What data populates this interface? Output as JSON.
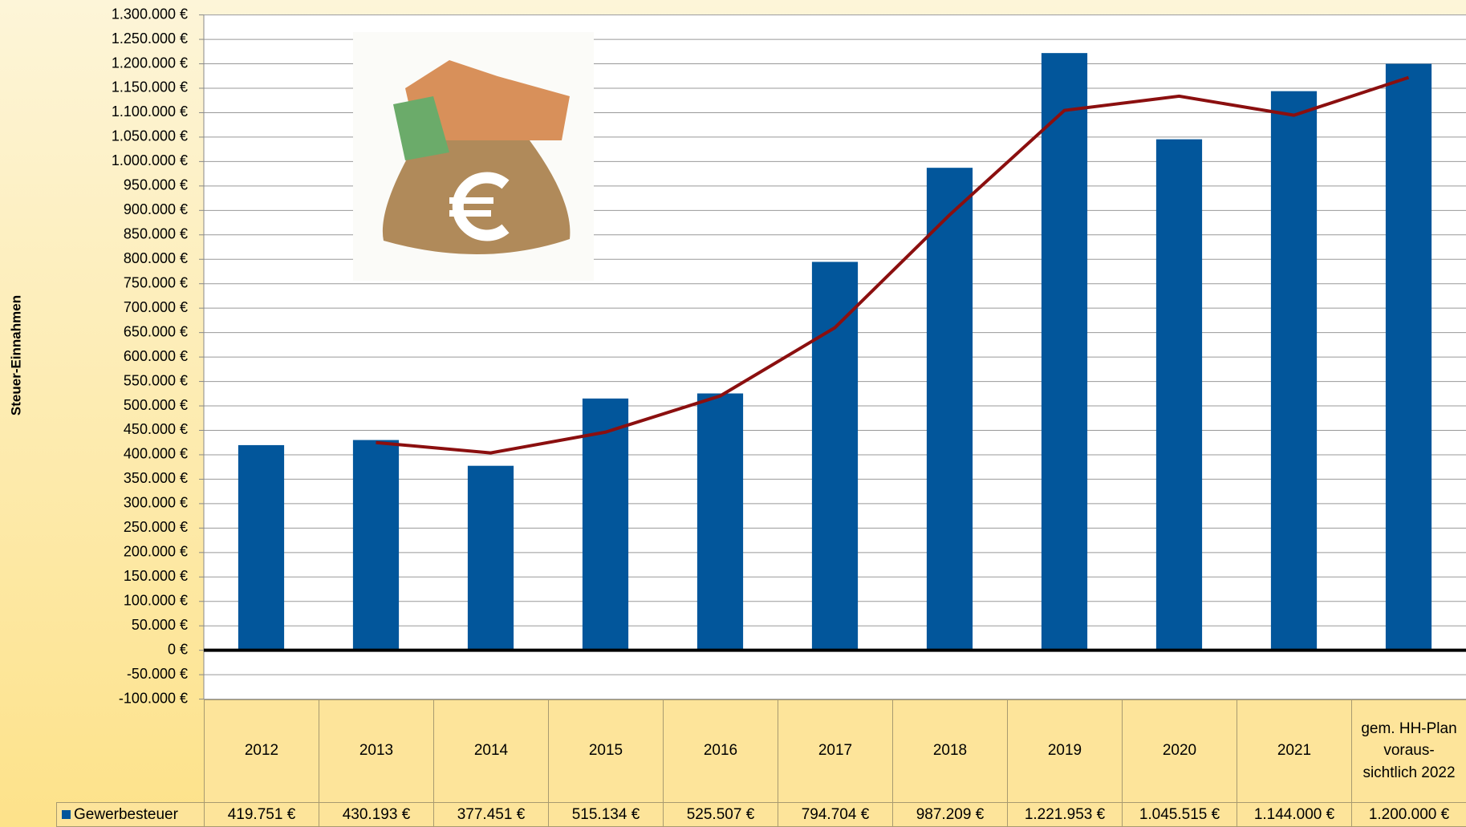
{
  "chart_data": {
    "type": "bar",
    "y_axis_label": "Steuer-Einnahmen",
    "categories": [
      "2012",
      "2013",
      "2014",
      "2015",
      "2016",
      "2017",
      "2018",
      "2019",
      "2020",
      "2021",
      "gem. HH-Plan voraus-sichtlich 2022"
    ],
    "series": [
      {
        "name": "Gewerbesteuer",
        "color": "#02569b",
        "values": [
          419751,
          430193,
          377451,
          515134,
          525507,
          794704,
          987209,
          1221953,
          1045515,
          1144000,
          1200000
        ],
        "value_labels": [
          "419.751 €",
          "430.193 €",
          "377.451 €",
          "515.134 €",
          "525.507 €",
          "794.704 €",
          "987.209 €",
          "1.221.953 €",
          "1.045.515 €",
          "1.144.000 €",
          "1.200.000 €"
        ]
      }
    ],
    "trendline": {
      "color": "#8b0f0f",
      "values": [
        null,
        424972,
        403822,
        446292,
        520320,
        660105,
        890956,
        1104581,
        1133734,
        1094757,
        1172000
      ]
    },
    "ylim": [
      -100000,
      1300000
    ],
    "yticks": [
      {
        "value": -100000,
        "label": "-100.000 €"
      },
      {
        "value": -50000,
        "label": "-50.000 €"
      },
      {
        "value": 0,
        "label": "0 €"
      },
      {
        "value": 50000,
        "label": "50.000 €"
      },
      {
        "value": 100000,
        "label": "100.000 €"
      },
      {
        "value": 150000,
        "label": "150.000 €"
      },
      {
        "value": 200000,
        "label": "200.000 €"
      },
      {
        "value": 250000,
        "label": "250.000 €"
      },
      {
        "value": 300000,
        "label": "300.000 €"
      },
      {
        "value": 350000,
        "label": "350.000 €"
      },
      {
        "value": 400000,
        "label": "400.000 €"
      },
      {
        "value": 450000,
        "label": "450.000 €"
      },
      {
        "value": 500000,
        "label": "500.000 €"
      },
      {
        "value": 550000,
        "label": "550.000 €"
      },
      {
        "value": 600000,
        "label": "600.000 €"
      },
      {
        "value": 650000,
        "label": "650.000 €"
      },
      {
        "value": 700000,
        "label": "700.000 €"
      },
      {
        "value": 750000,
        "label": "750.000 €"
      },
      {
        "value": 800000,
        "label": "800.000 €"
      },
      {
        "value": 850000,
        "label": "850.000 €"
      },
      {
        "value": 900000,
        "label": "900.000 €"
      },
      {
        "value": 950000,
        "label": "950.000 €"
      },
      {
        "value": 1000000,
        "label": "1.000.000 €"
      },
      {
        "value": 1050000,
        "label": "1.050.000 €"
      },
      {
        "value": 1100000,
        "label": "1.100.000 €"
      },
      {
        "value": 1150000,
        "label": "1.150.000 €"
      },
      {
        "value": 1200000,
        "label": "1.200.000 €"
      },
      {
        "value": 1250000,
        "label": "1.250.000 €"
      },
      {
        "value": 1300000,
        "label": "1.300.000 €"
      }
    ],
    "grid": true
  }
}
